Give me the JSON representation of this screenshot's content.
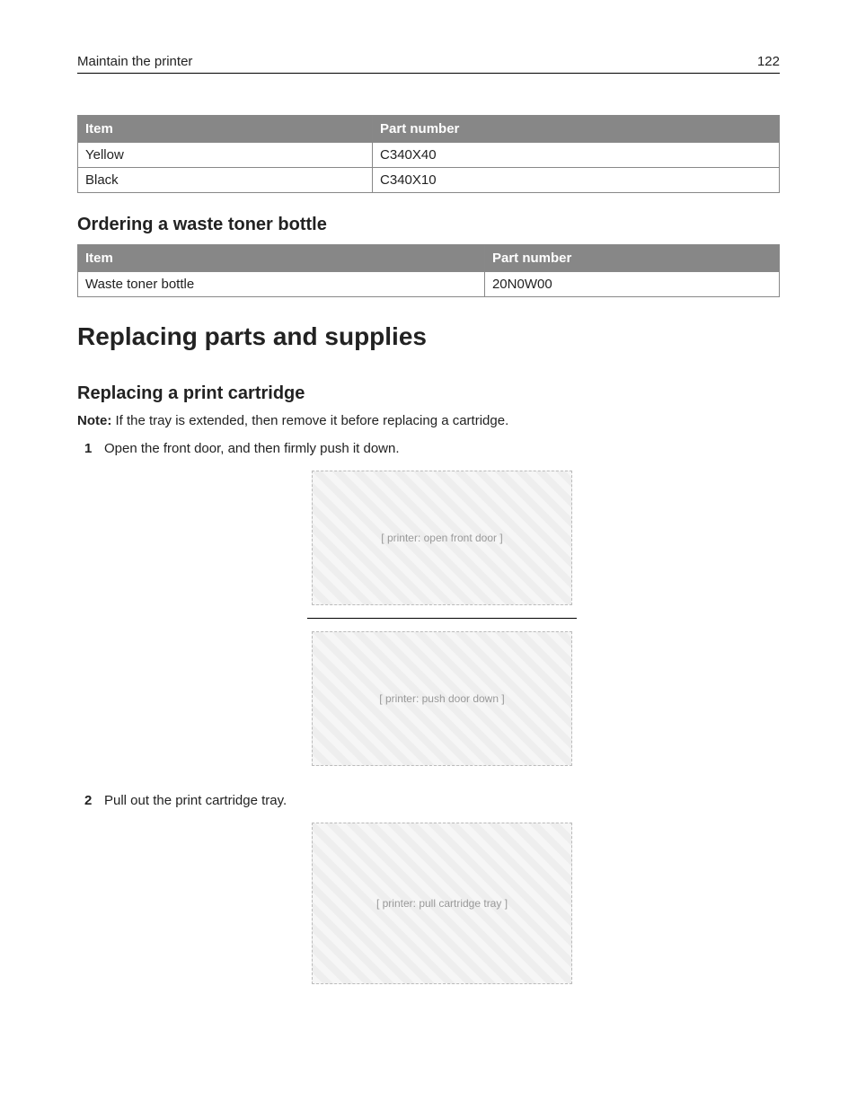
{
  "header": {
    "section_title": "Maintain the printer",
    "page_number": "122"
  },
  "table1": {
    "columns": [
      "Item",
      "Part number"
    ],
    "col_widths": [
      "42%",
      "58%"
    ],
    "rows": [
      [
        "Yellow",
        "C340X40"
      ],
      [
        "Black",
        "C340X10"
      ]
    ],
    "header_bg": "#878787",
    "header_fg": "#ffffff",
    "border_color": "#888888"
  },
  "subsection1_title": "Ordering a waste toner bottle",
  "table2": {
    "columns": [
      "Item",
      "Part number"
    ],
    "col_widths": [
      "58%",
      "42%"
    ],
    "rows": [
      [
        "Waste toner bottle",
        "20N0W00"
      ]
    ],
    "header_bg": "#878787",
    "header_fg": "#ffffff",
    "border_color": "#888888"
  },
  "section_title": "Replacing parts and supplies",
  "subsection2_title": "Replacing a print cartridge",
  "note_label": "Note:",
  "note_text": " If the tray is extended, then remove it before replacing a cartridge.",
  "steps": [
    "Open the front door, and then firmly push it down.",
    "Pull out the print cartridge tray."
  ],
  "figure_labels": {
    "fig1": "[ printer: open front door ]",
    "fig2": "[ printer: push door down ]",
    "fig3": "[ printer: pull cartridge tray ]"
  }
}
